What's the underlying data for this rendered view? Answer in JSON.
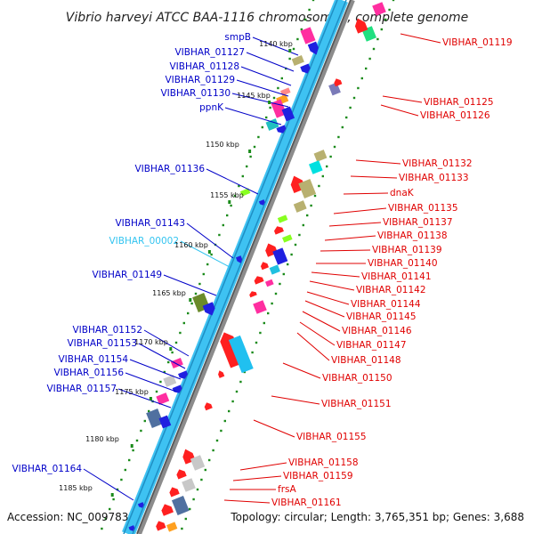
{
  "title": "Vibrio harveyi ATCC BAA-1116 chromosome I, complete genome",
  "footer": {
    "accession": "Accession: NC_009783",
    "summary": "Topology: circular; Length: 3,765,351 bp; Genes: 3,688"
  },
  "colors": {
    "backbone_light": "#3ec2f2",
    "backbone_grey": "#8c8c8c",
    "left_label": "#0000c8",
    "right_label": "#e00000",
    "rna_label": "#33c4f0",
    "tick": "#1a8a1a"
  },
  "kbp_ticks": [
    "1140 kbp",
    "1145 kbp",
    "1150 kbp",
    "1155 kbp",
    "1160 kbp",
    "1165 kbp",
    "1170 kbp",
    "1175 kbp",
    "1180 kbp",
    "1185 kbp"
  ],
  "left_labels": [
    {
      "name": "smpB",
      "color": "blue"
    },
    {
      "name": "VIBHAR_01127",
      "color": "blue"
    },
    {
      "name": "VIBHAR_01128",
      "color": "blue"
    },
    {
      "name": "VIBHAR_01129",
      "color": "blue"
    },
    {
      "name": "VIBHAR_01130",
      "color": "blue"
    },
    {
      "name": "ppnK",
      "color": "blue"
    },
    {
      "name": "VIBHAR_01136",
      "color": "blue"
    },
    {
      "name": "VIBHAR_01143",
      "color": "blue"
    },
    {
      "name": "VIBHAR_00002",
      "color": "rna"
    },
    {
      "name": "VIBHAR_01149",
      "color": "blue"
    },
    {
      "name": "VIBHAR_01152",
      "color": "blue"
    },
    {
      "name": "VIBHAR_01153",
      "color": "blue"
    },
    {
      "name": "VIBHAR_01154",
      "color": "blue"
    },
    {
      "name": "VIBHAR_01156",
      "color": "blue"
    },
    {
      "name": "VIBHAR_01157",
      "color": "blue"
    },
    {
      "name": "VIBHAR_01164",
      "color": "blue"
    }
  ],
  "right_labels": [
    "VIBHAR_01119",
    "VIBHAR_01125",
    "VIBHAR_01126",
    "VIBHAR_01132",
    "VIBHAR_01133",
    "dnaK",
    "VIBHAR_01135",
    "VIBHAR_01137",
    "VIBHAR_01138",
    "VIBHAR_01139",
    "VIBHAR_01140",
    "VIBHAR_01141",
    "VIBHAR_01142",
    "VIBHAR_01144",
    "VIBHAR_01145",
    "VIBHAR_01146",
    "VIBHAR_01147",
    "VIBHAR_01148",
    "VIBHAR_01150",
    "VIBHAR_01151",
    "VIBHAR_01155",
    "VIBHAR_01158",
    "VIBHAR_01159",
    "frsA",
    "VIBHAR_01161"
  ]
}
